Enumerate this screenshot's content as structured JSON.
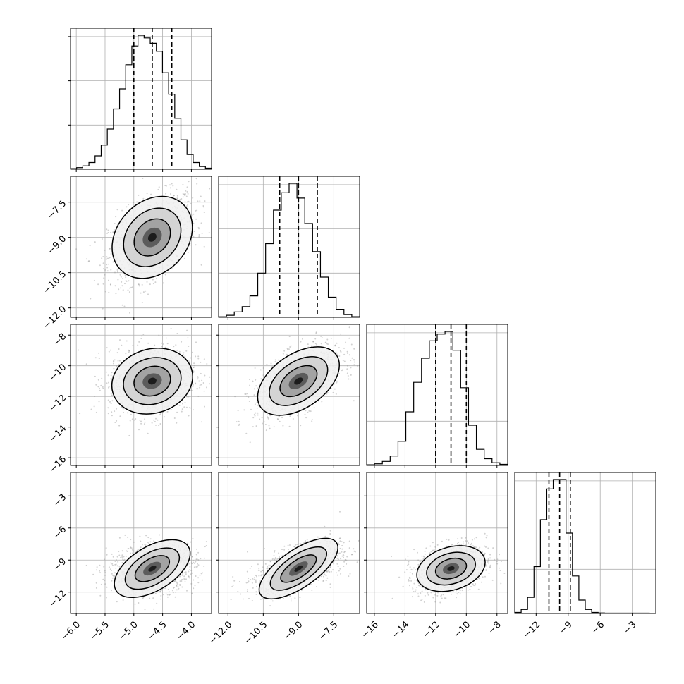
{
  "chart_data": {
    "type": "corner",
    "grid": true,
    "colors": {
      "line": "#000000",
      "grid": "#b0b0b0",
      "scatter": "#9a9a9a",
      "density": "#000000"
    },
    "params": [
      {
        "range": [
          -6.1,
          -3.65
        ],
        "median": -4.68,
        "q16": -5.0,
        "q84": -4.34,
        "ticks": [
          -6.0,
          -5.5,
          -5.0,
          -4.5,
          -4.0
        ],
        "tick_labels": [
          "−6.0",
          "−5.5",
          "−5.0",
          "−4.5",
          "−4.0"
        ]
      },
      {
        "range": [
          -12.4,
          -6.4
        ],
        "median": -9.0,
        "q16": -9.8,
        "q84": -8.2,
        "ticks": [
          -12.0,
          -10.5,
          -9.0,
          -7.5
        ],
        "tick_labels": [
          "−12.0",
          "−10.5",
          "−9.0",
          "−7.5"
        ]
      },
      {
        "range": [
          -16.5,
          -7.3
        ],
        "median": -11.0,
        "q16": -12.0,
        "q84": -10.0,
        "ticks": [
          -16,
          -14,
          -12,
          -10,
          -8
        ],
        "tick_labels": [
          "−16",
          "−14",
          "−12",
          "−10",
          "−8"
        ]
      },
      {
        "range": [
          -14.0,
          -0.8
        ],
        "median": -9.8,
        "q16": -10.8,
        "q84": -8.8,
        "ticks": [
          -12,
          -9,
          -6,
          -3
        ],
        "tick_labels": [
          "−12",
          "−9",
          "−6",
          "−3"
        ]
      }
    ],
    "histograms": [
      [
        0.005,
        0.012,
        0.025,
        0.05,
        0.1,
        0.18,
        0.3,
        0.45,
        0.6,
        0.78,
        0.92,
        1.0,
        0.98,
        0.94,
        0.88,
        0.72,
        0.56,
        0.38,
        0.22,
        0.11,
        0.05,
        0.02,
        0.008
      ],
      [
        0.004,
        0.015,
        0.04,
        0.08,
        0.16,
        0.33,
        0.55,
        0.8,
        0.93,
        1.0,
        0.89,
        0.7,
        0.49,
        0.3,
        0.15,
        0.06,
        0.02,
        0.005
      ],
      [
        0.005,
        0.012,
        0.03,
        0.07,
        0.18,
        0.4,
        0.62,
        0.8,
        0.93,
        0.98,
        1.0,
        0.86,
        0.58,
        0.3,
        0.12,
        0.05,
        0.02,
        0.008
      ],
      [
        0.008,
        0.03,
        0.12,
        0.35,
        0.7,
        0.93,
        1.0,
        1.0,
        0.6,
        0.28,
        0.1,
        0.03,
        0.008,
        0.004,
        0.003,
        0.003,
        0.003,
        0.003,
        0.003,
        0.003,
        0.003,
        0.002
      ]
    ],
    "correlations": {
      "1-0": 0.45,
      "2-0": 0.1,
      "2-1": 0.55,
      "3-0": 0.2,
      "3-1": 0.55,
      "3-2": 0.3
    },
    "sample_count": 1200
  }
}
